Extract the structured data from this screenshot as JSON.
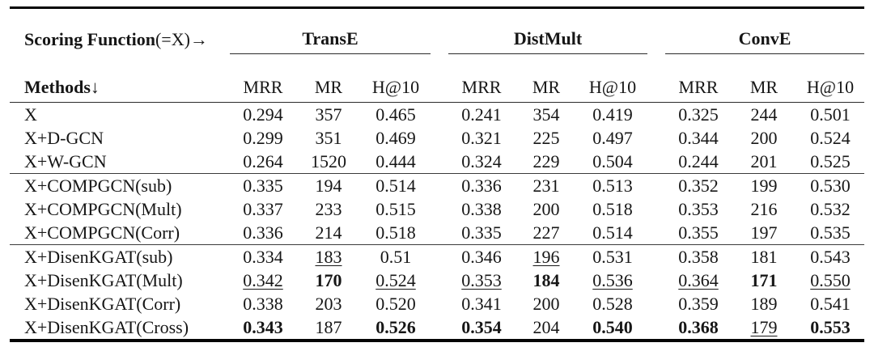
{
  "table": {
    "corner_header": {
      "label_bold": "Scoring Function",
      "label_suffix": "(=X)→"
    },
    "methods_header": {
      "label_bold": "Methods",
      "label_suffix": "↓"
    },
    "groups": [
      "TransE",
      "DistMult",
      "ConvE"
    ],
    "metric_headers": [
      "MRR",
      "MR",
      "H@10"
    ],
    "rows": [
      {
        "method": "X",
        "cells": [
          "0.294",
          "357",
          "0.465",
          "0.241",
          "354",
          "0.419",
          "0.325",
          "244",
          "0.501"
        ],
        "bold": [],
        "underline": [],
        "section_start": false
      },
      {
        "method": "X+D-GCN",
        "cells": [
          "0.299",
          "351",
          "0.469",
          "0.321",
          "225",
          "0.497",
          "0.344",
          "200",
          "0.524"
        ],
        "bold": [],
        "underline": [],
        "section_start": false
      },
      {
        "method": "X+W-GCN",
        "cells": [
          "0.264",
          "1520",
          "0.444",
          "0.324",
          "229",
          "0.504",
          "0.244",
          "201",
          "0.525"
        ],
        "bold": [],
        "underline": [],
        "section_start": false
      },
      {
        "method": "X+COMPGCN(sub)",
        "cells": [
          "0.335",
          "194",
          "0.514",
          "0.336",
          "231",
          "0.513",
          "0.352",
          "199",
          "0.530"
        ],
        "bold": [],
        "underline": [],
        "section_start": true
      },
      {
        "method": "X+COMPGCN(Mult)",
        "cells": [
          "0.337",
          "233",
          "0.515",
          "0.338",
          "200",
          "0.518",
          "0.353",
          "216",
          "0.532"
        ],
        "bold": [],
        "underline": [],
        "section_start": false
      },
      {
        "method": "X+COMPGCN(Corr)",
        "cells": [
          "0.336",
          "214",
          "0.518",
          "0.335",
          "227",
          "0.514",
          "0.355",
          "197",
          "0.535"
        ],
        "bold": [],
        "underline": [],
        "section_start": false
      },
      {
        "method": "X+DisenKGAT(sub)",
        "cells": [
          "0.334",
          "183",
          "0.51",
          "0.346",
          "196",
          "0.531",
          "0.358",
          "181",
          "0.543"
        ],
        "bold": [],
        "underline": [
          1,
          4
        ],
        "section_start": true
      },
      {
        "method": "X+DisenKGAT(Mult)",
        "cells": [
          "0.342",
          "170",
          "0.524",
          "0.353",
          "184",
          "0.536",
          "0.364",
          "171",
          "0.550"
        ],
        "bold": [
          1,
          4,
          7
        ],
        "underline": [
          0,
          2,
          3,
          5,
          6,
          8
        ],
        "section_start": false
      },
      {
        "method": "X+DisenKGAT(Corr)",
        "cells": [
          "0.338",
          "203",
          "0.520",
          "0.341",
          "200",
          "0.528",
          "0.359",
          "189",
          "0.541"
        ],
        "bold": [],
        "underline": [],
        "section_start": false
      },
      {
        "method": "X+DisenKGAT(Cross)",
        "cells": [
          "0.343",
          "187",
          "0.526",
          "0.354",
          "204",
          "0.540",
          "0.368",
          "179",
          "0.553"
        ],
        "bold": [
          0,
          2,
          3,
          5,
          6,
          8
        ],
        "underline": [
          7
        ],
        "section_start": false
      }
    ]
  }
}
